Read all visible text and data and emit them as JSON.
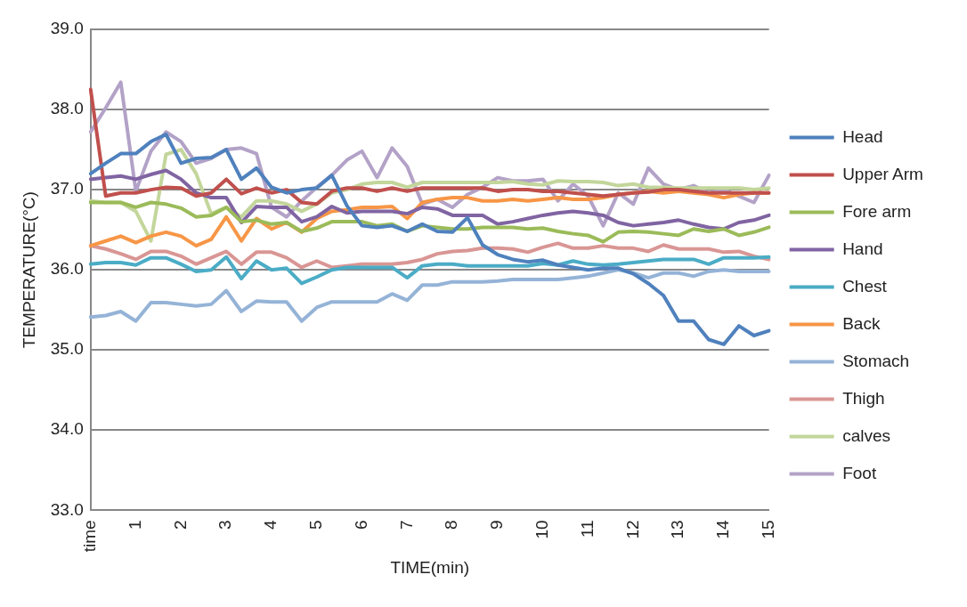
{
  "chart_data": {
    "type": "line",
    "xlabel": "TIME(min)",
    "ylabel": "TEMPERATURE(°C)",
    "categories": [
      "time",
      null,
      null,
      "1",
      null,
      null,
      "2",
      null,
      null,
      "3",
      null,
      null,
      "4",
      null,
      null,
      "5",
      null,
      null,
      "6",
      null,
      null,
      "7",
      null,
      null,
      "8",
      null,
      null,
      "9",
      null,
      null,
      "10",
      null,
      null,
      "11",
      null,
      null,
      "12",
      null,
      null,
      "13",
      null,
      null,
      "14",
      null,
      null,
      "15"
    ],
    "ylim": [
      33,
      39
    ],
    "yticks": [
      {
        "value": 33,
        "label": "33.0"
      },
      {
        "value": 34,
        "label": "34.0"
      },
      {
        "value": 35,
        "label": "35.0"
      },
      {
        "value": 36,
        "label": "36.0"
      },
      {
        "value": 37,
        "label": "37.0"
      },
      {
        "value": 38,
        "label": "38.0"
      },
      {
        "value": 39,
        "label": "39.0"
      }
    ],
    "grid": "y",
    "legend": "right",
    "marker": "none",
    "line_style": "solid",
    "series": [
      {
        "name": "Head",
        "color": "#4f81bd",
        "values": [
          37.2,
          37.33,
          37.45,
          37.45,
          37.6,
          37.69,
          37.33,
          37.39,
          37.4,
          37.5,
          37.13,
          37.27,
          37.03,
          36.96,
          37.0,
          37.02,
          37.18,
          36.8,
          36.55,
          36.53,
          36.55,
          36.48,
          36.57,
          36.48,
          36.47,
          36.65,
          36.31,
          36.19,
          36.13,
          36.1,
          36.12,
          36.06,
          36.03,
          36.0,
          36.02,
          36.02,
          35.95,
          35.83,
          35.68,
          35.36,
          35.36,
          35.13,
          35.07,
          35.3,
          35.18,
          35.24
        ]
      },
      {
        "name": "Upper Arm",
        "color": "#c0504d",
        "values": [
          38.25,
          36.92,
          36.96,
          36.96,
          37.0,
          37.03,
          37.02,
          36.92,
          36.96,
          37.13,
          36.95,
          37.02,
          36.96,
          37.0,
          36.84,
          36.82,
          36.98,
          37.02,
          37.02,
          36.98,
          37.02,
          36.98,
          37.02,
          37.02,
          37.02,
          37.02,
          37.02,
          36.98,
          37.0,
          37.0,
          36.98,
          36.98,
          36.96,
          36.94,
          36.92,
          36.94,
          36.96,
          36.97,
          37.0,
          37.0,
          36.98,
          36.96,
          36.96,
          36.96,
          36.96,
          36.96
        ]
      },
      {
        "name": "Fore arm",
        "color": "#9bbb59",
        "values": [
          36.84,
          36.84,
          36.84,
          36.78,
          36.84,
          36.82,
          36.77,
          36.66,
          36.68,
          36.78,
          36.6,
          36.62,
          36.57,
          36.59,
          36.48,
          36.52,
          36.6,
          36.6,
          36.6,
          36.55,
          36.57,
          36.48,
          36.55,
          36.53,
          36.51,
          36.51,
          36.53,
          36.53,
          36.53,
          36.51,
          36.52,
          36.48,
          36.45,
          36.43,
          36.35,
          36.47,
          36.48,
          36.47,
          36.45,
          36.43,
          36.51,
          36.48,
          36.51,
          36.43,
          36.47,
          36.53
        ]
      },
      {
        "name": "Hand",
        "color": "#8064a2",
        "values": [
          37.13,
          37.15,
          37.17,
          37.13,
          37.19,
          37.24,
          37.13,
          36.96,
          36.9,
          36.9,
          36.59,
          36.79,
          36.78,
          36.78,
          36.6,
          36.66,
          36.79,
          36.71,
          36.73,
          36.73,
          36.73,
          36.7,
          36.78,
          36.76,
          36.68,
          36.68,
          36.68,
          36.57,
          36.6,
          36.64,
          36.68,
          36.71,
          36.73,
          36.71,
          36.68,
          36.59,
          36.55,
          36.57,
          36.59,
          36.62,
          36.57,
          36.53,
          36.51,
          36.59,
          36.62,
          36.68
        ]
      },
      {
        "name": "Chest",
        "color": "#4bacc6",
        "values": [
          36.07,
          36.09,
          36.09,
          36.06,
          36.15,
          36.15,
          36.07,
          35.98,
          36.0,
          36.16,
          35.89,
          36.11,
          36.0,
          36.02,
          35.83,
          35.91,
          36.0,
          36.03,
          36.03,
          36.03,
          36.03,
          35.9,
          36.05,
          36.07,
          36.07,
          36.05,
          36.05,
          36.05,
          36.05,
          36.05,
          36.08,
          36.06,
          36.11,
          36.07,
          36.06,
          36.07,
          36.09,
          36.11,
          36.13,
          36.13,
          36.13,
          36.07,
          36.15,
          36.15,
          36.15,
          36.16
        ]
      },
      {
        "name": "Back",
        "color": "#f79646",
        "values": [
          36.3,
          36.36,
          36.42,
          36.34,
          36.42,
          36.47,
          36.42,
          36.3,
          36.38,
          36.66,
          36.36,
          36.64,
          36.51,
          36.59,
          36.47,
          36.64,
          36.73,
          36.75,
          36.78,
          36.78,
          36.79,
          36.64,
          36.84,
          36.88,
          36.9,
          36.9,
          36.86,
          36.86,
          36.88,
          36.86,
          36.88,
          36.9,
          36.88,
          36.88,
          36.9,
          36.94,
          36.96,
          36.98,
          36.96,
          36.98,
          36.96,
          36.94,
          36.9,
          36.94,
          36.96,
          36.96
        ]
      },
      {
        "name": "Stomach",
        "color": "#95b3d7",
        "values": [
          35.41,
          35.43,
          35.48,
          35.36,
          35.59,
          35.59,
          35.57,
          35.55,
          35.57,
          35.74,
          35.48,
          35.61,
          35.6,
          35.6,
          35.36,
          35.53,
          35.6,
          35.6,
          35.6,
          35.6,
          35.7,
          35.62,
          35.81,
          35.81,
          35.85,
          35.85,
          35.85,
          35.86,
          35.88,
          35.88,
          35.88,
          35.88,
          35.9,
          35.92,
          35.96,
          36.0,
          35.96,
          35.9,
          35.96,
          35.96,
          35.92,
          35.98,
          36.0,
          35.98,
          35.98,
          35.98
        ]
      },
      {
        "name": "Thigh",
        "color": "#d99694",
        "values": [
          36.3,
          36.26,
          36.2,
          36.13,
          36.23,
          36.23,
          36.17,
          36.07,
          36.15,
          36.23,
          36.07,
          36.22,
          36.22,
          36.15,
          36.03,
          36.11,
          36.03,
          36.05,
          36.07,
          36.07,
          36.07,
          36.09,
          36.13,
          36.2,
          36.23,
          36.24,
          36.27,
          36.27,
          36.26,
          36.22,
          36.28,
          36.33,
          36.27,
          36.27,
          36.3,
          36.27,
          36.27,
          36.23,
          36.31,
          36.26,
          36.26,
          36.26,
          36.22,
          36.23,
          36.17,
          36.13
        ]
      },
      {
        "name": "calves",
        "color": "#c3d69b",
        "values": [
          36.86,
          36.84,
          36.84,
          36.73,
          36.36,
          37.44,
          37.5,
          37.2,
          36.7,
          36.78,
          36.66,
          36.86,
          36.86,
          36.82,
          36.73,
          36.82,
          36.96,
          37.0,
          37.07,
          37.09,
          37.09,
          37.03,
          37.09,
          37.09,
          37.09,
          37.09,
          37.09,
          37.09,
          37.1,
          37.07,
          37.06,
          37.11,
          37.1,
          37.1,
          37.09,
          37.05,
          37.07,
          37.03,
          37.03,
          37.02,
          37.02,
          37.02,
          37.02,
          37.02,
          37.0,
          37.02
        ]
      },
      {
        "name": "Foot",
        "color": "#b3a2c7",
        "values": [
          37.72,
          38.02,
          38.34,
          36.98,
          37.48,
          37.72,
          37.6,
          37.33,
          37.39,
          37.5,
          37.52,
          37.45,
          36.78,
          36.66,
          36.86,
          37.03,
          37.18,
          37.37,
          37.48,
          37.15,
          37.52,
          37.29,
          36.82,
          36.88,
          36.78,
          36.94,
          37.03,
          37.15,
          37.11,
          37.11,
          37.13,
          36.86,
          37.07,
          36.92,
          36.55,
          36.96,
          36.82,
          37.27,
          37.07,
          37.0,
          37.05,
          36.96,
          37.0,
          36.92,
          36.84,
          37.18
        ]
      }
    ]
  }
}
